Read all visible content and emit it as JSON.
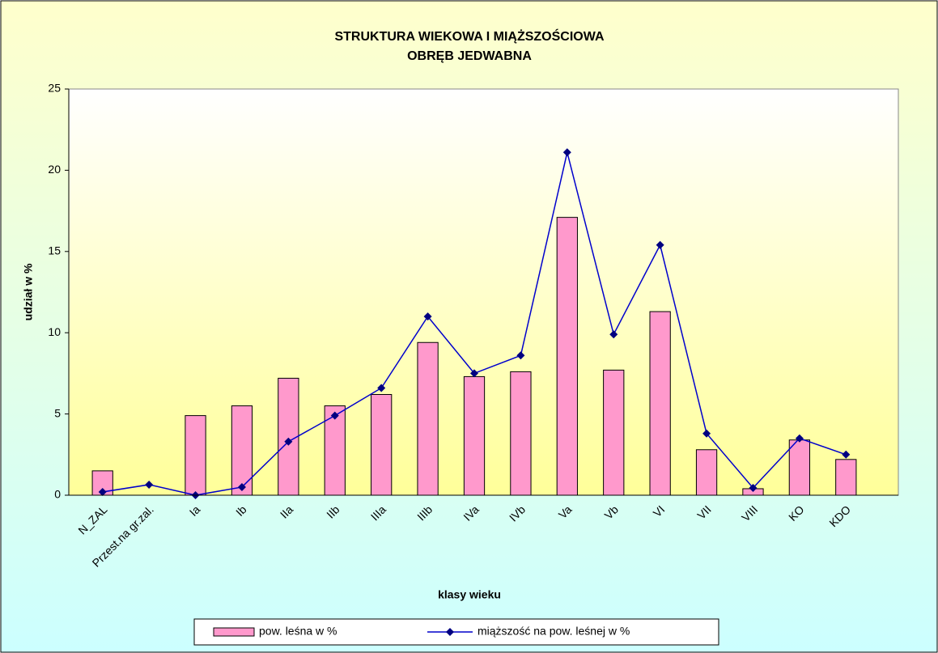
{
  "chart_data": {
    "type": "bar_line",
    "title": "STRUKTURA WIEKOWA I MIĄŻSZOŚCIOWA",
    "subtitle": "OBRĘB JEDWABNA",
    "x_label": "klasy wieku",
    "y_label": "udział w %",
    "categories": [
      "N_ZAL",
      "Przest.na gr.zal.",
      "Ia",
      "Ib",
      "IIa",
      "IIb",
      "IIIa",
      "IIIb",
      "IVa",
      "IVb",
      "Va",
      "Vb",
      "VI",
      "VII",
      "VIII",
      "KO",
      "KDO"
    ],
    "series": [
      {
        "name": "pow. leśna w %",
        "type": "bar",
        "color": "#ff99cc",
        "values": [
          1.5,
          0,
          4.9,
          5.5,
          7.2,
          5.5,
          6.2,
          9.4,
          7.3,
          7.6,
          17.1,
          7.7,
          11.3,
          2.8,
          0.4,
          3.4,
          2.2
        ]
      },
      {
        "name": "miąższość na pow. leśnej w %",
        "type": "line",
        "color": "#0000cc",
        "values": [
          0.2,
          0.65,
          0,
          0.5,
          3.3,
          4.9,
          6.6,
          11.0,
          7.5,
          8.6,
          21.1,
          9.9,
          15.4,
          3.8,
          0.45,
          3.5,
          2.5
        ]
      }
    ],
    "ylim": [
      0,
      25
    ],
    "yticks": [
      0,
      5,
      10,
      15,
      20,
      25
    ],
    "grid": false,
    "legend": "bottom"
  }
}
